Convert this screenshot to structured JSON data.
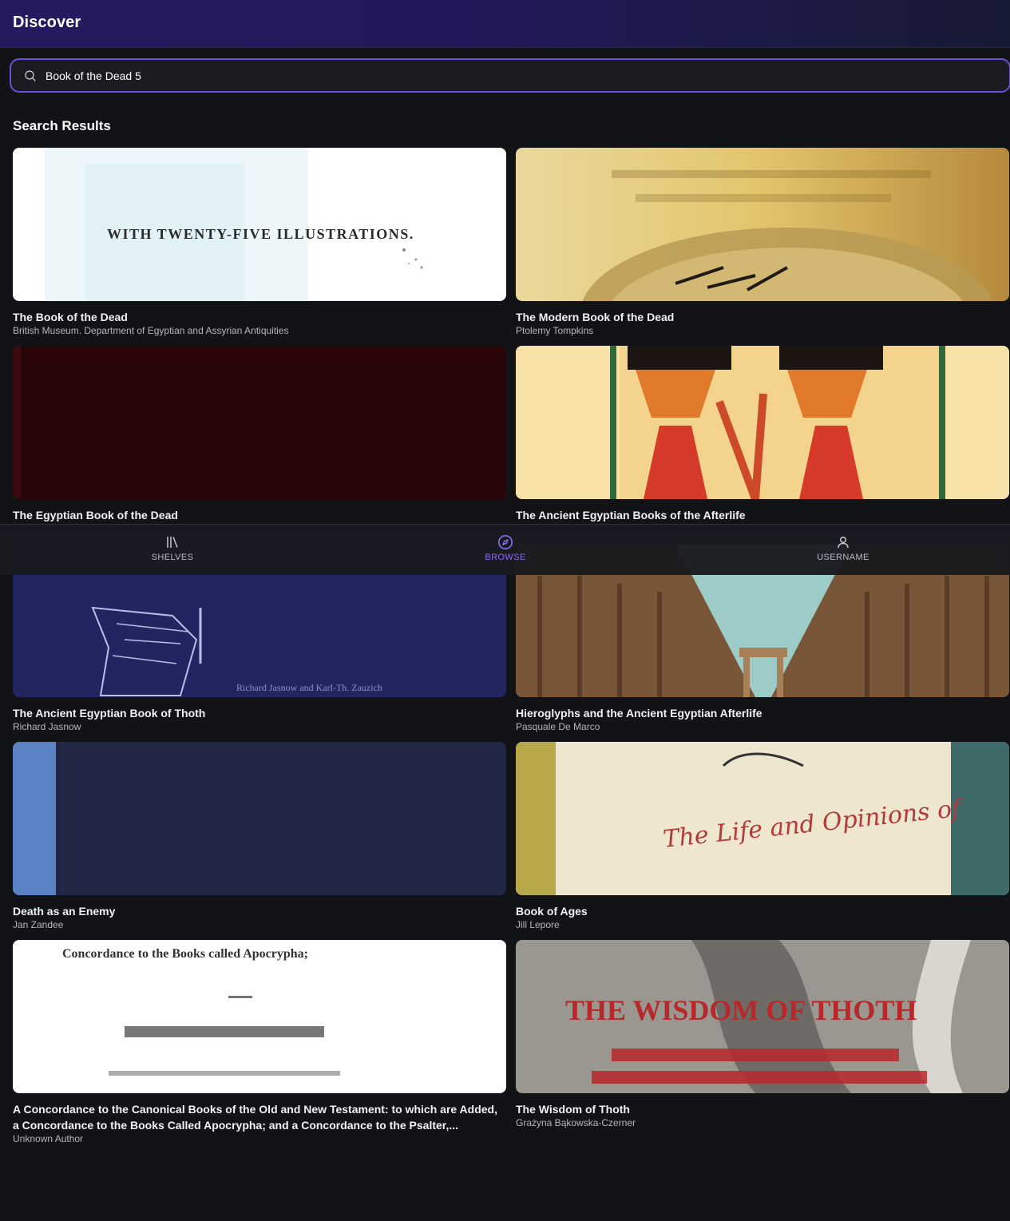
{
  "header": {
    "title": "Discover"
  },
  "search": {
    "value": "Book of the Dead 5",
    "icon": "search-icon"
  },
  "results": {
    "title": "Search Results",
    "books": [
      {
        "title": "The Book of the Dead",
        "author": "British Museum. Department of Egyptian and Assyrian Antiquities",
        "cover_text": "WITH TWENTY-FIVE ILLUSTRATIONS."
      },
      {
        "title": "The Modern Book of the Dead",
        "author": "Ptolemy Tompkins"
      },
      {
        "title": "The Egyptian Book of the Dead",
        "author": ""
      },
      {
        "title": "The Ancient Egyptian Books of the Afterlife",
        "author": ""
      },
      {
        "title": "The Ancient Egyptian Book of Thoth",
        "author": "Richard Jasnow",
        "cover_text": "Richard Jasnow and Karl-Th. Zauzich"
      },
      {
        "title": "Hieroglyphs and the Ancient Egyptian Afterlife",
        "author": "Pasquale De Marco"
      },
      {
        "title": "Death as an Enemy",
        "author": "Jan Zandee"
      },
      {
        "title": "Book of Ages",
        "author": "Jill Lepore",
        "cover_text": "The Life and Opinions of"
      },
      {
        "title": "A Concordance to the Canonical Books of the Old and New Testament: to which are Added, a Concordance to the Books Called Apocrypha; and a Concordance to the Psalter,...",
        "author": "Unknown Author",
        "cover_text": "Concordance to the Books called Apocrypha;"
      },
      {
        "title": "The Wisdom of Thoth",
        "author": "Grażyna Bąkowska-Czerner",
        "cover_text": "THE WISDOM OF THOTH"
      }
    ]
  },
  "nav": {
    "items": [
      {
        "label": "SHELVES",
        "icon": "shelves-icon"
      },
      {
        "label": "BROWSE",
        "icon": "compass-icon",
        "active": true
      },
      {
        "label": "USERNAME",
        "icon": "user-icon"
      }
    ]
  },
  "colors": {
    "accent": "#7c5cf0",
    "background": "#121316",
    "header": "#251a5e"
  }
}
